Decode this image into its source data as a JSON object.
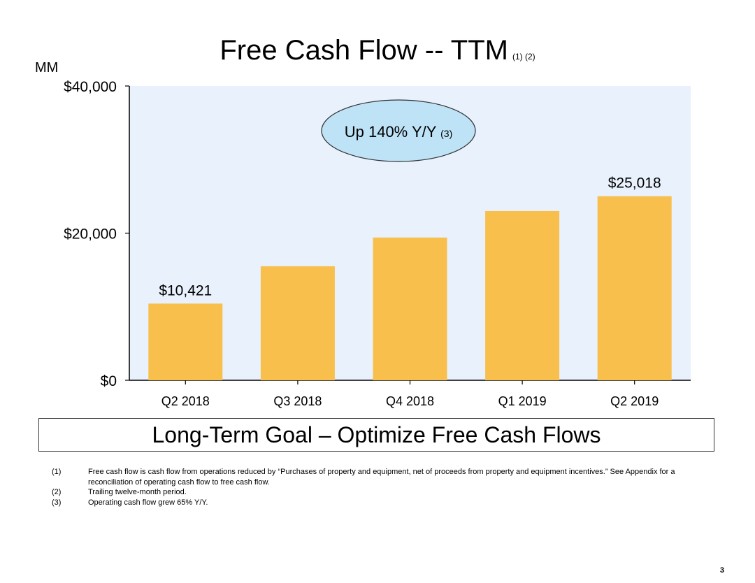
{
  "title": {
    "text": "Free Cash Flow -- TTM",
    "refs": "(1) (2)"
  },
  "chart_data": {
    "type": "bar",
    "title": "Free Cash Flow -- TTM",
    "ylabel": "MM",
    "xlabel": "",
    "categories": [
      "Q2 2018",
      "Q3 2018",
      "Q4 2018",
      "Q1 2019",
      "Q2 2019"
    ],
    "values": [
      10421,
      15500,
      19400,
      23000,
      25018
    ],
    "data_labels": [
      "$10,421",
      null,
      null,
      null,
      "$25,018"
    ],
    "ylim": [
      0,
      40000
    ],
    "yticks": [
      0,
      20000,
      40000
    ],
    "ytick_labels": [
      "$0",
      "$20,000",
      "$40,000"
    ],
    "callout": {
      "text": "Up 140% Y/Y",
      "ref": "(3)"
    },
    "colors": {
      "bar": "#F8BF4C",
      "plot_background": "#E8F1FC",
      "callout_fill": "#BEE3F7"
    }
  },
  "goal_box": "Long-Term Goal – Optimize Free Cash Flows",
  "footnotes": [
    {
      "num": "(1)",
      "text": "Free cash flow is cash flow from operations reduced by “Purchases of property and equipment, net of proceeds from property and equipment incentives.” See Appendix for a reconciliation of operating cash flow to free cash flow."
    },
    {
      "num": "(2)",
      "text": "Trailing twelve-month period."
    },
    {
      "num": "(3)",
      "text": "Operating cash flow grew 65% Y/Y."
    }
  ],
  "page_number": "3"
}
